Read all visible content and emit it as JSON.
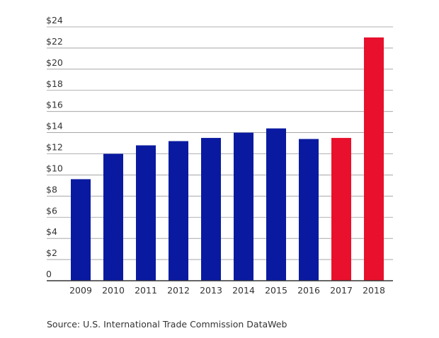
{
  "chart_data": {
    "type": "bar",
    "title": "",
    "xlabel": "",
    "ylabel": "",
    "categories": [
      "2009",
      "2010",
      "2011",
      "2012",
      "2013",
      "2014",
      "2015",
      "2016",
      "2017",
      "2018"
    ],
    "values": [
      9.6,
      12.0,
      12.8,
      13.2,
      13.5,
      14.0,
      14.4,
      13.4,
      13.5,
      23.0
    ],
    "bar_colors": [
      "#0a1aa0",
      "#0a1aa0",
      "#0a1aa0",
      "#0a1aa0",
      "#0a1aa0",
      "#0a1aa0",
      "#0a1aa0",
      "#0a1aa0",
      "#e8102c",
      "#e8102c"
    ],
    "ylim": [
      0,
      24
    ],
    "yticks": [
      0,
      2,
      4,
      6,
      8,
      10,
      12,
      14,
      16,
      18,
      20,
      22,
      24
    ],
    "ytick_labels": [
      "0",
      "$2",
      "$4",
      "$6",
      "$8",
      "$10",
      "$12",
      "$14",
      "$16",
      "$18",
      "$20",
      "$22",
      "$24"
    ],
    "grid": true,
    "legend": "none"
  },
  "source": "Source: U.S. International Trade Commission DataWeb"
}
